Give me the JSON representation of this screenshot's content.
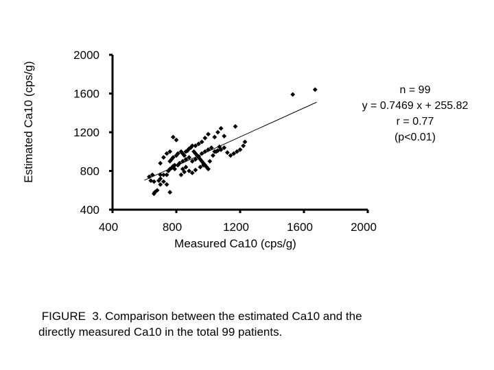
{
  "chart_data": {
    "type": "scatter",
    "title": "",
    "xlabel": "Measured Ca10 (cps/g)",
    "ylabel": "Estimated Ca10 (cps/g)",
    "xlim": [
      400,
      2000
    ],
    "ylim": [
      400,
      2000
    ],
    "xticks": [
      "400",
      "800",
      "1200",
      "1600",
      "2000"
    ],
    "yticks": [
      "400",
      "800",
      "1200",
      "1600",
      "2000"
    ],
    "grid": false,
    "trendline": {
      "slope": 0.7469,
      "intercept": 255.82,
      "x_range": [
        600,
        1680
      ]
    },
    "points": [
      [
        660,
        565
      ],
      [
        665,
        580
      ],
      [
        680,
        600
      ],
      [
        700,
        660
      ],
      [
        690,
        700
      ],
      [
        700,
        720
      ],
      [
        720,
        690
      ],
      [
        740,
        660
      ],
      [
        760,
        580
      ],
      [
        640,
        700
      ],
      [
        630,
        740
      ],
      [
        650,
        760
      ],
      [
        660,
        690
      ],
      [
        700,
        760
      ],
      [
        720,
        760
      ],
      [
        740,
        760
      ],
      [
        750,
        800
      ],
      [
        760,
        820
      ],
      [
        770,
        830
      ],
      [
        780,
        850
      ],
      [
        790,
        860
      ],
      [
        760,
        900
      ],
      [
        770,
        920
      ],
      [
        780,
        940
      ],
      [
        800,
        960
      ],
      [
        810,
        980
      ],
      [
        830,
        1000
      ],
      [
        840,
        980
      ],
      [
        850,
        960
      ],
      [
        860,
        1000
      ],
      [
        870,
        1010
      ],
      [
        880,
        1030
      ],
      [
        890,
        1040
      ],
      [
        900,
        1060
      ],
      [
        910,
        1000
      ],
      [
        920,
        980
      ],
      [
        930,
        960
      ],
      [
        940,
        940
      ],
      [
        950,
        920
      ],
      [
        960,
        900
      ],
      [
        970,
        880
      ],
      [
        980,
        860
      ],
      [
        990,
        840
      ],
      [
        1000,
        820
      ],
      [
        810,
        860
      ],
      [
        820,
        880
      ],
      [
        840,
        900
      ],
      [
        860,
        920
      ],
      [
        880,
        940
      ],
      [
        900,
        900
      ],
      [
        920,
        920
      ],
      [
        940,
        950
      ],
      [
        960,
        980
      ],
      [
        980,
        1000
      ],
      [
        1000,
        1020
      ],
      [
        1020,
        1040
      ],
      [
        1040,
        1000
      ],
      [
        1060,
        1010
      ],
      [
        1080,
        1020
      ],
      [
        1100,
        1040
      ],
      [
        1120,
        990
      ],
      [
        1140,
        960
      ],
      [
        1160,
        980
      ],
      [
        1180,
        1000
      ],
      [
        1200,
        1020
      ],
      [
        1220,
        1060
      ],
      [
        1230,
        1100
      ],
      [
        1040,
        1150
      ],
      [
        1060,
        1200
      ],
      [
        1080,
        1240
      ],
      [
        1100,
        1160
      ],
      [
        1170,
        1260
      ],
      [
        1000,
        1180
      ],
      [
        980,
        1140
      ],
      [
        960,
        1100
      ],
      [
        940,
        1080
      ],
      [
        920,
        1060
      ],
      [
        780,
        1150
      ],
      [
        800,
        1120
      ],
      [
        760,
        1000
      ],
      [
        740,
        980
      ],
      [
        720,
        940
      ],
      [
        840,
        820
      ],
      [
        860,
        840
      ],
      [
        880,
        800
      ],
      [
        900,
        780
      ],
      [
        920,
        810
      ],
      [
        950,
        840
      ],
      [
        970,
        860
      ],
      [
        1010,
        900
      ],
      [
        1030,
        960
      ],
      [
        1050,
        1000
      ],
      [
        1070,
        1050
      ],
      [
        830,
        760
      ],
      [
        850,
        790
      ],
      [
        790,
        820
      ],
      [
        700,
        880
      ],
      [
        1530,
        1590
      ],
      [
        1670,
        1640
      ]
    ],
    "stats": {
      "n": "n = 99",
      "equation": "y = 0.7469 x + 255.82",
      "r": "r = 0.77",
      "p": "(p<0.01)"
    }
  },
  "caption": {
    "line1": " FIGURE  3. Comparison between the estimated Ca10 and the",
    "line2": "directly measured Ca10 in the total 99 patients."
  }
}
